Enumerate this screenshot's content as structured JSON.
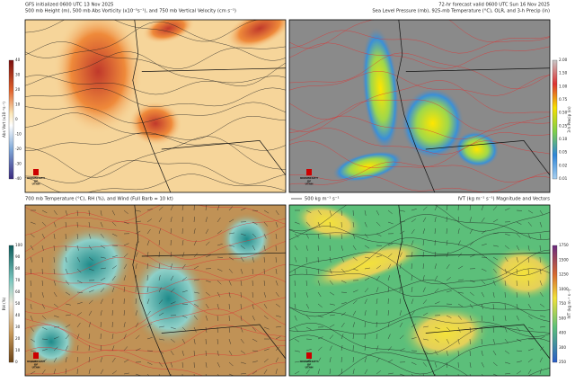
{
  "panels": [
    {
      "title_left": "GFS initialized 0600 UTC 13 Nov 2025",
      "title_left2": "500 mb Height (m), 500 mb Abs Vorticity (x10⁻⁵s⁻¹), and 750 mb Vertical Velocity (cm s⁻¹)",
      "colorbar": {
        "label": "Abs Vort (x10⁻⁵s⁻¹)",
        "ticks": [
          "40",
          "30",
          "20",
          "10",
          "0",
          "-10",
          "-20",
          "-30",
          "-40"
        ]
      }
    },
    {
      "title_right": "72-hr forecast valid 0600 UTC Sun 16 Nov 2025",
      "title_right2": "Sea Level Pressure (mb), 925-mb Temperature (°C), OLR, and 3-h Precip (in)",
      "colorbar": {
        "label": "3-h Precip (in)",
        "ticks": [
          "2.00",
          "1.50",
          "1.00",
          "0.75",
          "0.50",
          "0.25",
          "0.10",
          "0.05",
          "0.02",
          "0.01"
        ]
      }
    },
    {
      "title_left": "700 mb Temperature (°C), RH (%), and Wind (Full Barb = 10 kt)",
      "colorbar": {
        "label": "RH (%)",
        "ticks": [
          "100",
          "90",
          "80",
          "70",
          "60",
          "50",
          "40",
          "30",
          "20",
          "10",
          "0"
        ]
      }
    },
    {
      "title_right": "IVT (kg m⁻¹ s⁻¹) Magnitude and Vectors",
      "vector_key": "500 kg m⁻¹ s⁻¹",
      "colorbar": {
        "label": "IVT (kg m⁻¹ s⁻¹)",
        "ticks": [
          "1750",
          "1500",
          "1250",
          "1000",
          "750",
          "500",
          "400",
          "300",
          "250"
        ]
      }
    }
  ],
  "logo": {
    "line1": "UNIVERSITY",
    "line2": "OF",
    "line3": "UTAH"
  }
}
